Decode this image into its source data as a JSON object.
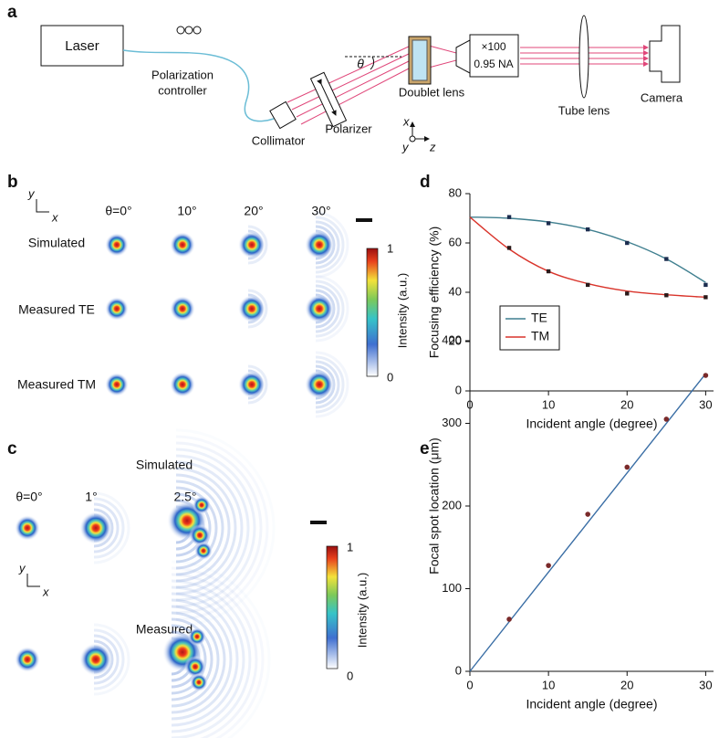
{
  "setup": {
    "label": "a",
    "laser": "Laser",
    "controller": [
      "Polarization",
      "controller"
    ],
    "collimator": "Collimator",
    "polarizer": "Polarizer",
    "angle": "θ",
    "doublet": "Doublet lens",
    "objective": [
      "×100",
      "0.95 NA"
    ],
    "tube_lens": "Tube lens",
    "camera": "Camera",
    "axes": [
      "x",
      "y",
      "z"
    ]
  },
  "panel_b": {
    "label": "b",
    "axes": [
      "y",
      "x"
    ],
    "columns": [
      "θ=0°",
      "10°",
      "20°",
      "30°"
    ],
    "rows": [
      "Simulated",
      "Measured TE",
      "Measured TM"
    ],
    "colorbar": {
      "max": "1",
      "min": "0",
      "title": "Intensity (a.u.)"
    }
  },
  "panel_c": {
    "label": "c",
    "rows": [
      "Simulated",
      "Measured"
    ],
    "columns": [
      "θ=0°",
      "1°",
      "2.5°"
    ],
    "axes": [
      "y",
      "x"
    ],
    "colorbar": {
      "max": "1",
      "min": "0",
      "title": "Intensity (a.u.)"
    }
  },
  "chart_data": [
    {
      "type": "scatter",
      "label": "d",
      "xlabel": "Incident angle (degree)",
      "ylabel": "Focusing efficiency (%)",
      "xlim": [
        0,
        31
      ],
      "xticks": [
        0,
        10,
        20,
        30
      ],
      "ylim": [
        0,
        80
      ],
      "yticks": [
        0,
        20,
        40,
        60,
        80
      ],
      "legend": "center left",
      "series": [
        {
          "name": "TE",
          "color": "#3f7f8f",
          "marker_color": "#1c2d4f",
          "x": [
            5,
            10,
            15,
            20,
            25,
            30
          ],
          "values": [
            70.5,
            68,
            65.5,
            60,
            53.5,
            43
          ],
          "fit": {
            "x": [
              0,
              5,
              10,
              15,
              20,
              25,
              30
            ],
            "values": [
              70.5,
              70,
              68.5,
              65.5,
              60.5,
              53.5,
              44
            ]
          }
        },
        {
          "name": "TM",
          "color": "#d9342b",
          "marker_color": "#2a1a1a",
          "x": [
            5,
            10,
            15,
            20,
            25,
            30
          ],
          "values": [
            58,
            48.5,
            43,
            39.5,
            38.8,
            38
          ],
          "fit": {
            "x": [
              0,
              5,
              10,
              15,
              20,
              25,
              30
            ],
            "values": [
              70.5,
              57.5,
              48.5,
              43.5,
              40.5,
              39,
              38
            ]
          }
        }
      ]
    },
    {
      "type": "scatter",
      "label": "e",
      "xlabel": "Incident angle (degree)",
      "ylabel": "Focal spot location (μm)",
      "xlim": [
        0,
        31
      ],
      "xticks": [
        0,
        10,
        20,
        30
      ],
      "ylim": [
        0,
        400
      ],
      "yticks": [
        0,
        100,
        200,
        300,
        400
      ],
      "series": [
        {
          "color": "#3a6ea5",
          "marker_color": "#7a2a2a",
          "x": [
            5,
            10,
            15,
            20,
            25,
            30
          ],
          "values": [
            63,
            128,
            190,
            247,
            305,
            358
          ],
          "fit": {
            "x": [
              0,
              30
            ],
            "values": [
              0,
              360
            ]
          }
        }
      ]
    }
  ]
}
